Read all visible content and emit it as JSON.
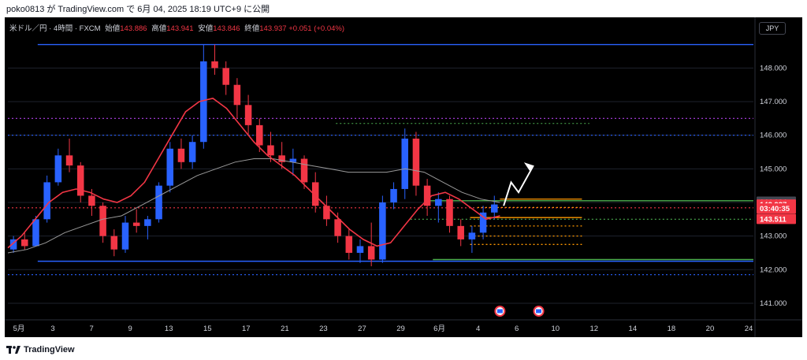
{
  "header": {
    "publish_text": "poko0813 が TradingView.com で 6月 04, 2025 18:19 UTC+9 に公開"
  },
  "legend": {
    "symbol": "米ドル／円 · 4時間 · FXCM",
    "open_label": "始値",
    "open": "143.886",
    "high_label": "高値",
    "high": "143.941",
    "low_label": "安値",
    "low": "143.846",
    "close_label": "終値",
    "close": "143.937",
    "change": "+0.051 (+0.04%)"
  },
  "currency_button": "JPY",
  "footer": {
    "brand": "TradingView"
  },
  "colors": {
    "up": "#2962ff",
    "down": "#f23645",
    "ma_fast": "#f23645",
    "ma_slow": "#9b9b9b",
    "hline_blue": "#2962ff",
    "hline_purple": "#b040e8",
    "hline_green": "#4caf50",
    "hline_orange": "#ff9800"
  },
  "price_tags": [
    {
      "price": 144.024,
      "text": "144.024",
      "bg": "#434651"
    },
    {
      "price": 143.937,
      "text": "143.937",
      "bg": "#f23645"
    },
    {
      "price": 143.82,
      "text": "03:40:35",
      "bg": "#f23645"
    },
    {
      "price": 143.511,
      "text": "143.511",
      "bg": "#f23645"
    }
  ],
  "chart_data": {
    "type": "candlestick",
    "ylim": [
      140.6,
      148.9
    ],
    "y_ticks": [
      141,
      142,
      143,
      144,
      145,
      146,
      147,
      148
    ],
    "y_tick_labels": [
      "141.000",
      "142.000",
      "143.000",
      "144.000",
      "145.000",
      "146.000",
      "147.000",
      "148.000"
    ],
    "x_labels": [
      "5月",
      "3",
      "7",
      "9",
      "13",
      "15",
      "17",
      "21",
      "23",
      "27",
      "29",
      "6月",
      "4",
      "6",
      "10",
      "12",
      "14",
      "18",
      "20",
      "24"
    ],
    "candles": [
      [
        142.6,
        143.0,
        142.5,
        142.9
      ],
      [
        142.9,
        143.1,
        142.6,
        142.7
      ],
      [
        142.7,
        143.6,
        142.7,
        143.5
      ],
      [
        143.5,
        144.8,
        143.4,
        144.6
      ],
      [
        144.6,
        145.6,
        144.5,
        145.4
      ],
      [
        145.4,
        145.9,
        144.9,
        145.1
      ],
      [
        145.1,
        145.2,
        144.0,
        144.2
      ],
      [
        144.2,
        144.4,
        143.6,
        143.9
      ],
      [
        143.9,
        144.0,
        142.8,
        143.0
      ],
      [
        143.0,
        143.2,
        142.4,
        142.6
      ],
      [
        142.6,
        143.6,
        142.5,
        143.4
      ],
      [
        143.4,
        143.8,
        143.1,
        143.3
      ],
      [
        143.3,
        143.6,
        142.9,
        143.5
      ],
      [
        143.5,
        144.6,
        143.4,
        144.5
      ],
      [
        144.5,
        145.8,
        144.3,
        145.6
      ],
      [
        145.6,
        145.9,
        145.0,
        145.2
      ],
      [
        145.2,
        146.0,
        145.0,
        145.8
      ],
      [
        145.8,
        148.7,
        145.6,
        148.2
      ],
      [
        148.2,
        148.7,
        147.8,
        148.0
      ],
      [
        148.0,
        148.2,
        147.2,
        147.5
      ],
      [
        147.5,
        147.7,
        146.5,
        146.9
      ],
      [
        146.9,
        147.2,
        146.0,
        146.3
      ],
      [
        146.3,
        146.5,
        145.5,
        145.7
      ],
      [
        145.7,
        146.1,
        145.2,
        145.4
      ],
      [
        145.4,
        145.8,
        145.0,
        145.2
      ],
      [
        145.2,
        145.6,
        144.8,
        145.3
      ],
      [
        145.3,
        145.4,
        144.4,
        144.6
      ],
      [
        144.6,
        144.9,
        143.7,
        143.9
      ],
      [
        143.9,
        144.2,
        143.3,
        143.5
      ],
      [
        143.5,
        143.7,
        142.8,
        143.0
      ],
      [
        143.0,
        143.2,
        142.3,
        142.5
      ],
      [
        142.5,
        142.9,
        142.2,
        142.7
      ],
      [
        142.7,
        143.4,
        142.1,
        142.3
      ],
      [
        142.3,
        144.2,
        142.2,
        144.0
      ],
      [
        144.0,
        144.6,
        143.8,
        144.4
      ],
      [
        144.4,
        146.2,
        144.1,
        145.9
      ],
      [
        145.9,
        146.1,
        144.2,
        144.5
      ],
      [
        144.5,
        144.7,
        143.6,
        143.9
      ],
      [
        143.9,
        144.3,
        143.4,
        144.1
      ],
      [
        144.1,
        144.2,
        143.1,
        143.3
      ],
      [
        143.3,
        143.5,
        142.7,
        142.9
      ],
      [
        142.9,
        143.3,
        142.5,
        143.1
      ],
      [
        143.1,
        143.9,
        142.9,
        143.7
      ],
      [
        143.7,
        144.2,
        143.5,
        143.94
      ]
    ],
    "candle_x_start": 0,
    "candle_x_end": 48,
    "x_range": [
      0,
      100
    ],
    "ma_fast": [
      142.65,
      143.0,
      143.5,
      144.0,
      144.3,
      144.4,
      144.3,
      144.1,
      144.0,
      144.2,
      144.6,
      145.3,
      146.0,
      146.7,
      147.0,
      147.1,
      146.8,
      146.3,
      145.8,
      145.4,
      145.1,
      144.8,
      144.4,
      144.0,
      143.6,
      143.2,
      142.9,
      142.7,
      142.8,
      143.3,
      143.8,
      144.2,
      144.3,
      144.1,
      143.8,
      143.5,
      143.6
    ],
    "ma_slow": [
      142.5,
      142.6,
      142.8,
      143.1,
      143.3,
      143.5,
      143.6,
      143.9,
      144.2,
      144.5,
      144.8,
      145.0,
      145.2,
      145.3,
      145.3,
      145.2,
      145.1,
      145.0,
      144.9,
      144.9,
      144.9,
      145.0,
      144.9,
      144.6,
      144.3,
      144.1,
      144.0
    ],
    "hlines": [
      {
        "price": 148.7,
        "x0": 4,
        "x1": 100,
        "style": "solid",
        "color": "blue"
      },
      {
        "price": 146.5,
        "x0": 0,
        "x1": 100,
        "style": "dotted",
        "color": "purple"
      },
      {
        "price": 146.0,
        "x0": 0,
        "x1": 100,
        "style": "dotted",
        "color": "blue"
      },
      {
        "price": 146.35,
        "x0": 44,
        "x1": 78,
        "style": "dotted",
        "color": "green"
      },
      {
        "price": 144.05,
        "x0": 56,
        "x1": 100,
        "style": "solid",
        "color": "green"
      },
      {
        "price": 143.84,
        "x0": 0,
        "x1": 100,
        "style": "dotted",
        "color": "red"
      },
      {
        "price": 143.5,
        "x0": 54,
        "x1": 100,
        "style": "dotted",
        "color": "green"
      },
      {
        "price": 142.25,
        "x0": 4,
        "x1": 100,
        "style": "solid",
        "color": "blue"
      },
      {
        "price": 142.3,
        "x0": 57,
        "x1": 100,
        "style": "solid",
        "color": "green"
      },
      {
        "price": 141.85,
        "x0": 0,
        "x1": 100,
        "style": "dotted",
        "color": "blue"
      }
    ],
    "orange_levels": [
      {
        "price": 144.1,
        "x0": 66,
        "x1": 77,
        "style": "solid"
      },
      {
        "price": 143.85,
        "x0": 63,
        "x1": 77,
        "style": "dotted"
      },
      {
        "price": 143.55,
        "x0": 62,
        "x1": 77,
        "style": "solid"
      },
      {
        "price": 143.3,
        "x0": 62,
        "x1": 77,
        "style": "dotted"
      },
      {
        "price": 143.0,
        "x0": 62,
        "x1": 77,
        "style": "dotted"
      },
      {
        "price": 142.75,
        "x0": 62,
        "x1": 77,
        "style": "dotted"
      }
    ],
    "arrow_path": [
      [
        66.5,
        143.9
      ],
      [
        67.5,
        144.6
      ],
      [
        68.5,
        144.3
      ],
      [
        70.5,
        145.1
      ]
    ],
    "events": [
      {
        "x": 66.0
      },
      {
        "x": 71.2
      }
    ]
  }
}
